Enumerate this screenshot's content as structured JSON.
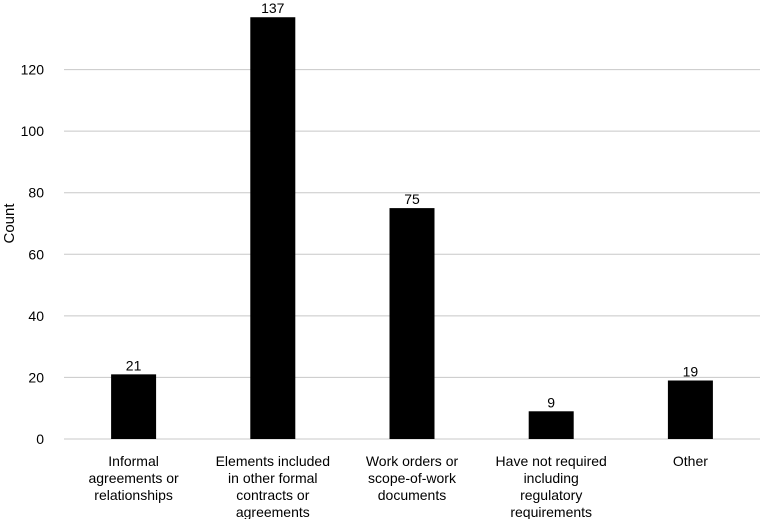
{
  "chart_data": {
    "type": "bar",
    "title": "",
    "xlabel": "",
    "ylabel": "Count",
    "ylim": [
      0,
      140
    ],
    "yticks": [
      0,
      20,
      40,
      60,
      80,
      100,
      120
    ],
    "grid": true,
    "legend": "none",
    "categories": [
      "Informal agreements or relationships",
      "Elements included in other formal contracts or agreements",
      "Work orders or scope-of-work documents",
      "Have not required including regulatory requirements",
      "Other"
    ],
    "category_lines": [
      [
        "Informal",
        "agreements or",
        "relationships"
      ],
      [
        "Elements included",
        "in other formal",
        "contracts or",
        "agreements"
      ],
      [
        "Work orders or",
        "scope-of-work",
        "documents"
      ],
      [
        "Have not required",
        "including",
        "regulatory",
        "requirements"
      ],
      [
        "Other"
      ]
    ],
    "values": [
      21,
      137,
      75,
      9,
      19
    ],
    "bar_color": "#000000",
    "grid_color": "#c8c8c8"
  }
}
